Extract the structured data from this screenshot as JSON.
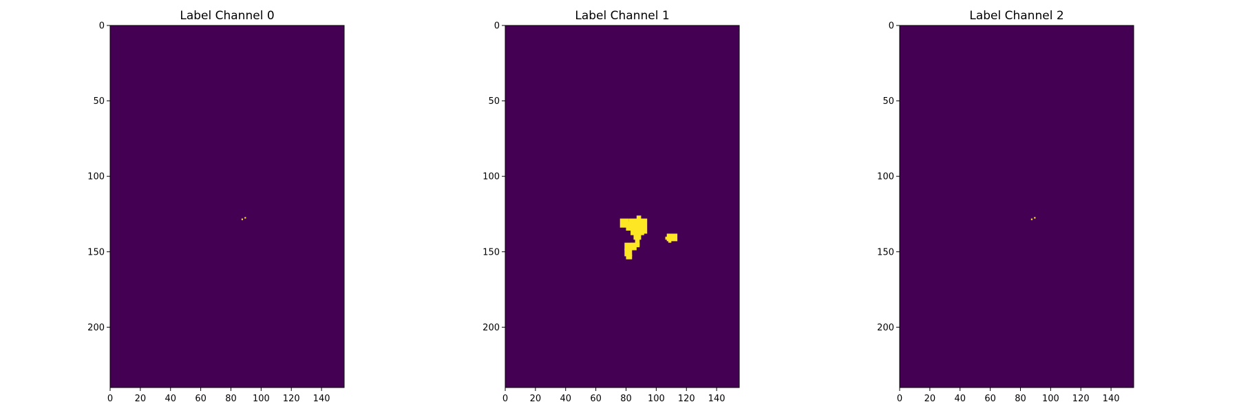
{
  "chart_data": [
    {
      "type": "heatmap",
      "title": "Label Channel 0",
      "xlim": [
        0,
        155
      ],
      "ylim": [
        240,
        0
      ],
      "xticks": [
        "0",
        "20",
        "40",
        "60",
        "80",
        "100",
        "120",
        "140"
      ],
      "yticks": [
        "0",
        "50",
        "100",
        "150",
        "200"
      ],
      "background_color": "#440154",
      "foreground_color": "#fde725",
      "grid": false,
      "foreground_pixels": [
        [
          87,
          128
        ],
        [
          89,
          127
        ]
      ]
    },
    {
      "type": "heatmap",
      "title": "Label Channel 1",
      "xlim": [
        0,
        155
      ],
      "ylim": [
        240,
        0
      ],
      "xticks": [
        "0",
        "20",
        "40",
        "60",
        "80",
        "100",
        "120",
        "140"
      ],
      "yticks": [
        "0",
        "50",
        "100",
        "150",
        "200"
      ],
      "background_color": "#440154",
      "foreground_color": "#fde725",
      "grid": false,
      "foreground_regions": [
        {
          "x": 76,
          "y": 128,
          "w": 6,
          "h": 6
        },
        {
          "x": 80,
          "y": 130,
          "w": 10,
          "h": 6
        },
        {
          "x": 82,
          "y": 128,
          "w": 8,
          "h": 4
        },
        {
          "x": 87,
          "y": 126,
          "w": 3,
          "h": 3
        },
        {
          "x": 89,
          "y": 128,
          "w": 5,
          "h": 10
        },
        {
          "x": 83,
          "y": 134,
          "w": 9,
          "h": 5
        },
        {
          "x": 85,
          "y": 138,
          "w": 5,
          "h": 4
        },
        {
          "x": 86,
          "y": 141,
          "w": 3,
          "h": 5
        },
        {
          "x": 79,
          "y": 144,
          "w": 8,
          "h": 5
        },
        {
          "x": 83,
          "y": 144,
          "w": 6,
          "h": 3
        },
        {
          "x": 79,
          "y": 148,
          "w": 5,
          "h": 5
        },
        {
          "x": 80,
          "y": 152,
          "w": 4,
          "h": 3
        },
        {
          "x": 107,
          "y": 138,
          "w": 7,
          "h": 5
        },
        {
          "x": 106,
          "y": 140,
          "w": 2,
          "h": 2
        },
        {
          "x": 108,
          "y": 142,
          "w": 2,
          "h": 2
        }
      ]
    },
    {
      "type": "heatmap",
      "title": "Label Channel 2",
      "xlim": [
        0,
        155
      ],
      "ylim": [
        240,
        0
      ],
      "xticks": [
        "0",
        "20",
        "40",
        "60",
        "80",
        "100",
        "120",
        "140"
      ],
      "yticks": [
        "0",
        "50",
        "100",
        "150",
        "200"
      ],
      "background_color": "#440154",
      "foreground_color": "#fde725",
      "grid": false,
      "foreground_pixels": [
        [
          87,
          128
        ],
        [
          89,
          127
        ]
      ]
    }
  ]
}
